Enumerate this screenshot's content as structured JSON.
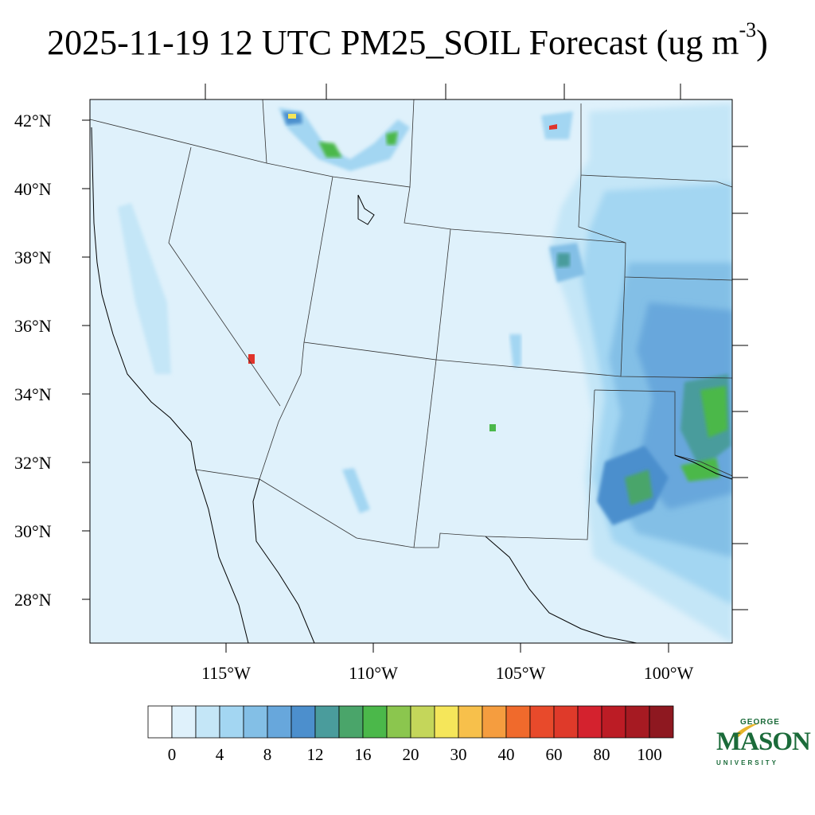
{
  "title": {
    "main": "2025-11-19 12 UTC PM25_SOIL Forecast (ug m",
    "superscript": "-3",
    "close": ")"
  },
  "map": {
    "lat_labels": [
      "42°N",
      "40°N",
      "38°N",
      "36°N",
      "34°N",
      "32°N",
      "30°N",
      "28°N"
    ],
    "lon_labels": [
      "115°W",
      "110°W",
      "105°W",
      "100°W"
    ],
    "background_color": "#dff1fb",
    "region_note_colors": {
      "light": "#c4e6f7",
      "mid": "#9fd4ef",
      "blue": "#6aaadc",
      "dark_blue": "#4a8fcb",
      "green": "#4cab4a",
      "hot": "#e0332a"
    }
  },
  "colorbar": {
    "levels": [
      "0",
      "4",
      "8",
      "12",
      "16",
      "20",
      "30",
      "40",
      "60",
      "80",
      "100"
    ],
    "colors": [
      "#ffffff",
      "#dff1fb",
      "#c4e6f7",
      "#a3d6f2",
      "#83bfe6",
      "#67a7dc",
      "#4c8fcd",
      "#4a9c9c",
      "#4aa56a",
      "#4bb84a",
      "#8bc64e",
      "#c4d65a",
      "#f5e65a",
      "#f7c04b",
      "#f59d3f",
      "#f06a2c",
      "#e84a2b",
      "#df3a2a",
      "#d4222e",
      "#bc1c25",
      "#a61a22",
      "#8e1820"
    ]
  },
  "logo": {
    "line1": "GEORGE",
    "line2": "MASON",
    "line3": "UNIVERSITY"
  }
}
